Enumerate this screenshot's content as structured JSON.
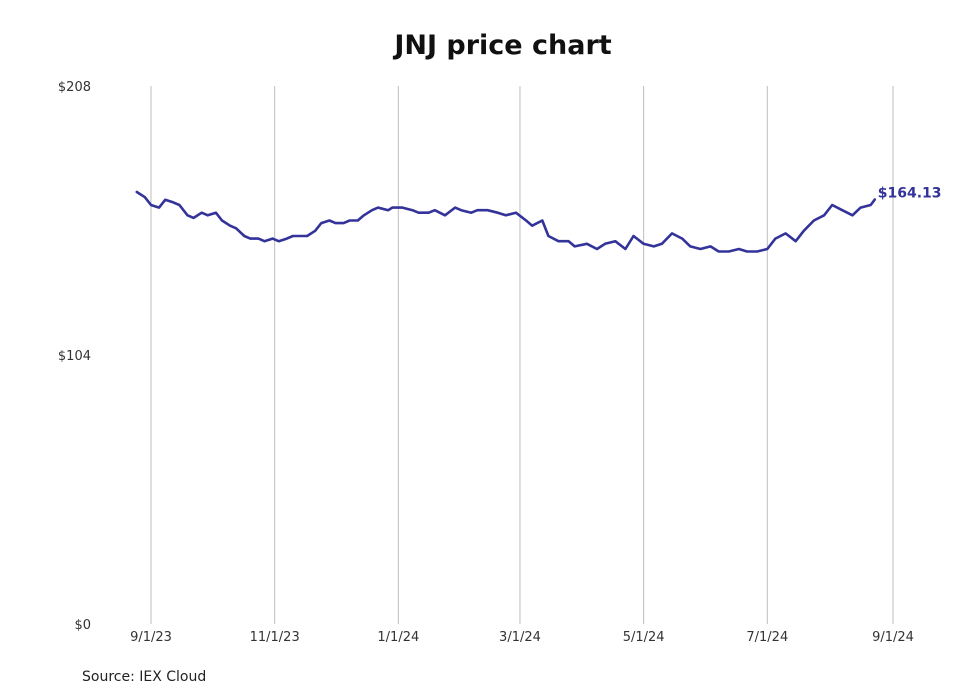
{
  "chart_data": {
    "type": "line",
    "title": "JNJ price chart",
    "xlabel": "",
    "ylabel": "",
    "ylim": [
      0,
      208
    ],
    "y_ticks": [
      {
        "value": 0,
        "label": "$0"
      },
      {
        "value": 104,
        "label": "$104"
      },
      {
        "value": 208,
        "label": "$208"
      }
    ],
    "x_range": [
      "2023-08-25",
      "2024-09-01"
    ],
    "x_ticks": [
      {
        "date": "2023-09-01",
        "label": "9/1/23"
      },
      {
        "date": "2023-11-01",
        "label": "11/1/23"
      },
      {
        "date": "2024-01-01",
        "label": "1/1/24"
      },
      {
        "date": "2024-03-01",
        "label": "3/1/24"
      },
      {
        "date": "2024-05-01",
        "label": "5/1/24"
      },
      {
        "date": "2024-07-01",
        "label": "7/1/24"
      },
      {
        "date": "2024-09-01",
        "label": "9/1/24"
      }
    ],
    "grid": {
      "vertical": true,
      "horizontal": false
    },
    "series": [
      {
        "name": "",
        "color": "#333399",
        "x": [
          "2023-08-25",
          "2023-08-29",
          "2023-09-01",
          "2023-09-05",
          "2023-09-08",
          "2023-09-12",
          "2023-09-15",
          "2023-09-19",
          "2023-09-22",
          "2023-09-26",
          "2023-09-29",
          "2023-10-03",
          "2023-10-06",
          "2023-10-10",
          "2023-10-13",
          "2023-10-17",
          "2023-10-20",
          "2023-10-24",
          "2023-10-27",
          "2023-10-31",
          "2023-11-03",
          "2023-11-07",
          "2023-11-10",
          "2023-11-14",
          "2023-11-17",
          "2023-11-21",
          "2023-11-24",
          "2023-11-28",
          "2023-12-01",
          "2023-12-05",
          "2023-12-08",
          "2023-12-12",
          "2023-12-15",
          "2023-12-19",
          "2023-12-22",
          "2023-12-27",
          "2023-12-29",
          "2024-01-03",
          "2024-01-08",
          "2024-01-11",
          "2024-01-16",
          "2024-01-19",
          "2024-01-24",
          "2024-01-29",
          "2024-02-01",
          "2024-02-06",
          "2024-02-09",
          "2024-02-14",
          "2024-02-19",
          "2024-02-23",
          "2024-02-28",
          "2024-03-04",
          "2024-03-07",
          "2024-03-12",
          "2024-03-15",
          "2024-03-20",
          "2024-03-25",
          "2024-03-28",
          "2024-04-03",
          "2024-04-08",
          "2024-04-12",
          "2024-04-17",
          "2024-04-22",
          "2024-04-26",
          "2024-05-01",
          "2024-05-06",
          "2024-05-10",
          "2024-05-15",
          "2024-05-20",
          "2024-05-24",
          "2024-05-29",
          "2024-06-03",
          "2024-06-07",
          "2024-06-12",
          "2024-06-17",
          "2024-06-21",
          "2024-06-26",
          "2024-07-01",
          "2024-07-05",
          "2024-07-10",
          "2024-07-15",
          "2024-07-19",
          "2024-07-24",
          "2024-07-29",
          "2024-08-02",
          "2024-08-07",
          "2024-08-12",
          "2024-08-16",
          "2024-08-21",
          "2024-08-23"
        ],
        "values": [
          167,
          165,
          162,
          161,
          164,
          163,
          162,
          158,
          157,
          159,
          158,
          159,
          156,
          154,
          153,
          150,
          149,
          149,
          148,
          149,
          148,
          149,
          150,
          150,
          150,
          152,
          155,
          156,
          155,
          155,
          156,
          156,
          158,
          160,
          161,
          160,
          161,
          161,
          160,
          159,
          159,
          160,
          158,
          161,
          160,
          159,
          160,
          160,
          159,
          158,
          159,
          156,
          154,
          156,
          150,
          148,
          148,
          146,
          147,
          145,
          147,
          148,
          145,
          150,
          147,
          146,
          147,
          151,
          149,
          146,
          145,
          146,
          144,
          144,
          145,
          144,
          144,
          145,
          149,
          151,
          148,
          152,
          156,
          158,
          162,
          160,
          158,
          161,
          162,
          164.13
        ]
      }
    ],
    "end_label": "$164.13",
    "source": "Source: IEX Cloud"
  }
}
